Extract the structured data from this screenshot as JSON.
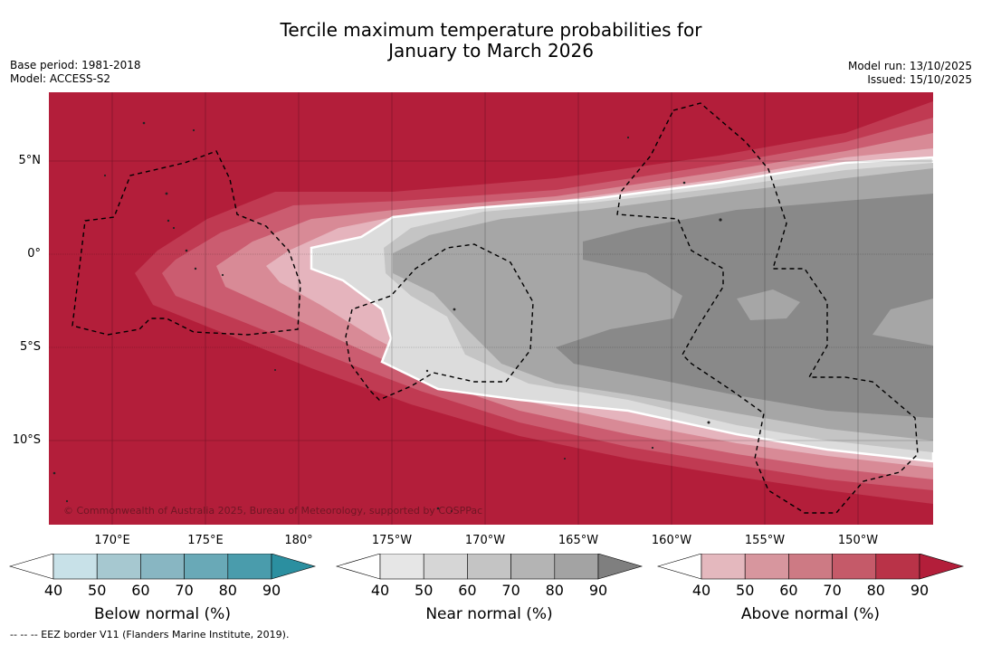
{
  "title_line1": "Tercile maximum temperature probabilities for",
  "title_line2": "January to March 2026",
  "base_period": "Base period: 1981-2018",
  "model": "Model: ACCESS-S2",
  "model_run": "Model run: 13/10/2025",
  "issued": "Issued: 15/10/2025",
  "copyright": "© Commonwealth of Australia 2025, Bureau of Meteorology, supported by COSPPac",
  "footnote": "--  --  -- EEZ border V11 (Flanders Marine Institute, 2019).",
  "map": {
    "lon_range": [
      -193.3,
      -145.9
    ],
    "lat_range": [
      -14.4,
      8.7
    ],
    "lat_labels": [
      {
        "lat": 5,
        "text": "5°N"
      },
      {
        "lat": 0,
        "text": "0°"
      },
      {
        "lat": -5,
        "text": "5°S"
      },
      {
        "lat": -10,
        "text": "10°S"
      }
    ],
    "lon_labels": [
      {
        "lon": 170,
        "text": "170°E"
      },
      {
        "lon": 175,
        "text": "175°E"
      },
      {
        "lon": 180,
        "text": "180°"
      },
      {
        "lon": 185,
        "text": "175°W"
      },
      {
        "lon": 190,
        "text": "170°W"
      },
      {
        "lon": 195,
        "text": "165°W"
      },
      {
        "lon": 200,
        "text": "160°W"
      },
      {
        "lon": 205,
        "text": "155°W"
      },
      {
        "lon": 210,
        "text": "150°W"
      }
    ],
    "colors": {
      "above_90": "#b31e3a",
      "above_80": "#c03a52",
      "above_70": "#cb5c70",
      "above_60": "#d88a96",
      "above_50": "#e5b4bd",
      "near_40": "#dcdcdc",
      "near_50": "#c4c4c4",
      "near_60": "#a6a6a6",
      "near_70": "#898989"
    }
  },
  "colorbars": [
    {
      "title": "Below normal (%)",
      "ticks": [
        "40",
        "50",
        "60",
        "70",
        "80",
        "90"
      ],
      "colors": [
        "#ffffff",
        "#c8e1e8",
        "#a6c8d0",
        "#88b6c2",
        "#69a9b7",
        "#4a9cac",
        "#2b8fa0"
      ]
    },
    {
      "title": "Near normal (%)",
      "ticks": [
        "40",
        "50",
        "60",
        "70",
        "80",
        "90"
      ],
      "colors": [
        "#ffffff",
        "#e6e6e6",
        "#d6d6d6",
        "#c4c4c4",
        "#b4b4b4",
        "#a3a3a3",
        "#7f7f7f"
      ]
    },
    {
      "title": "Above normal (%)",
      "ticks": [
        "40",
        "50",
        "60",
        "70",
        "80",
        "90"
      ],
      "colors": [
        "#ffffff",
        "#e4b8be",
        "#d7969e",
        "#cd7a84",
        "#c55a69",
        "#b93348",
        "#b31e3a"
      ]
    }
  ]
}
